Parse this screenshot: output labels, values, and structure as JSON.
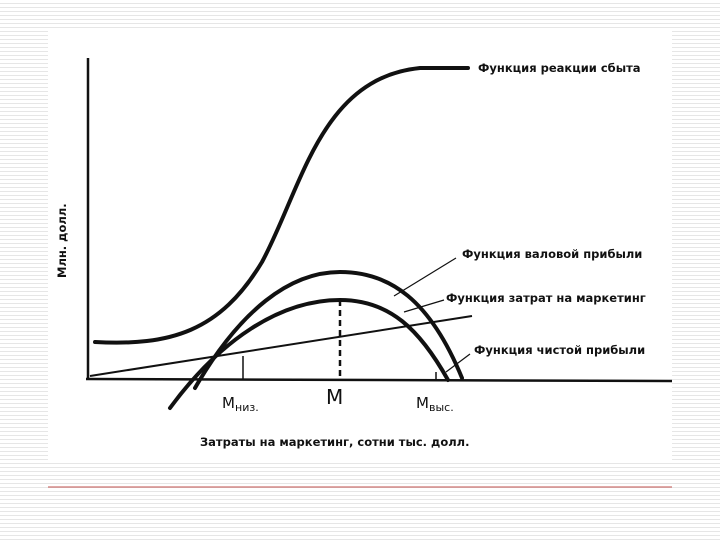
{
  "y_axis_label": "Млн. долл.",
  "x_axis_label": "Затраты на маркетинг, сотни тыс. долл.",
  "curves": [
    {
      "label": "Функция реакции сбыта"
    },
    {
      "label": "Функция валовой прибыли"
    },
    {
      "label": "Функция затрат на маркетинг"
    },
    {
      "label": "Функция чистой прибыли"
    }
  ],
  "markers": [
    {
      "letter": "M",
      "subscript": "низ."
    },
    {
      "letter": "M"
    },
    {
      "letter": "M",
      "subscript": "выс."
    }
  ]
}
